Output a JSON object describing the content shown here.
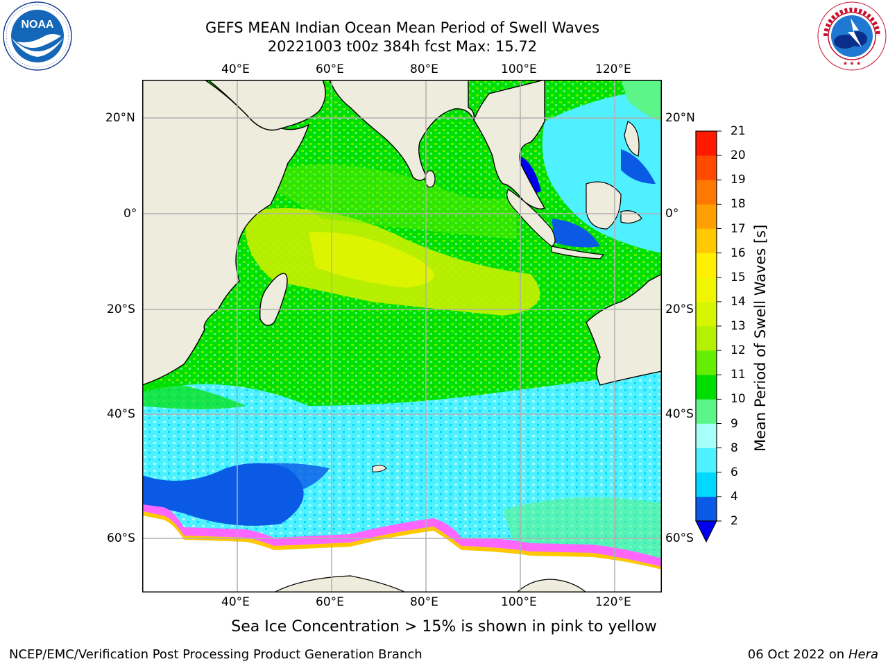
{
  "header": {
    "title_line1": "GEFS MEAN Indian Ocean Mean Period of Swell Waves",
    "title_line2": "20221003 t00z 384h fcst   Max: 15.72"
  },
  "logos": {
    "left": {
      "name": "noaa-logo",
      "text": "NOAA",
      "ring_text": "NATIONAL OCEANIC AND ATMOSPHERIC ADMINISTRATION · U.S. DEPARTMENT OF COMMERCE"
    },
    "right": {
      "name": "nws-logo",
      "ring_text": "NATIONAL WEATHER SERVICE"
    }
  },
  "map": {
    "lon_ticks": [
      "40°E",
      "60°E",
      "80°E",
      "100°E",
      "120°E"
    ],
    "lat_ticks": [
      "20°N",
      "0°",
      "20°S",
      "40°S",
      "60°S"
    ],
    "colors": {
      "land": "#eeecdc",
      "ice_free_white": "#ffffff",
      "grid": "#b0b0b0"
    }
  },
  "colorbar": {
    "label": "Mean Period of Swell Waves [s]",
    "ticks": [
      "2",
      "4",
      "6",
      "8",
      "9",
      "10",
      "11",
      "12",
      "13",
      "14",
      "15",
      "16",
      "17",
      "18",
      "19",
      "20",
      "21"
    ],
    "colors": [
      "#0a5ae6",
      "#00d8ff",
      "#4ff0ff",
      "#a6fff8",
      "#5cf58a",
      "#00dd00",
      "#66ee00",
      "#b4f000",
      "#d8f500",
      "#f0f500",
      "#ffef00",
      "#ffc800",
      "#ffa000",
      "#ff7800",
      "#ff4a00",
      "#ff1a00"
    ],
    "extend_color": "#0000ee"
  },
  "note": "Sea Ice Concentration > 15% is shown in pink to yellow",
  "footer": {
    "left": "NCEP/EMC/Verification Post Processing Product Generation Branch",
    "right_prefix": "06 Oct 2022 on ",
    "right_machine": "Hera"
  }
}
